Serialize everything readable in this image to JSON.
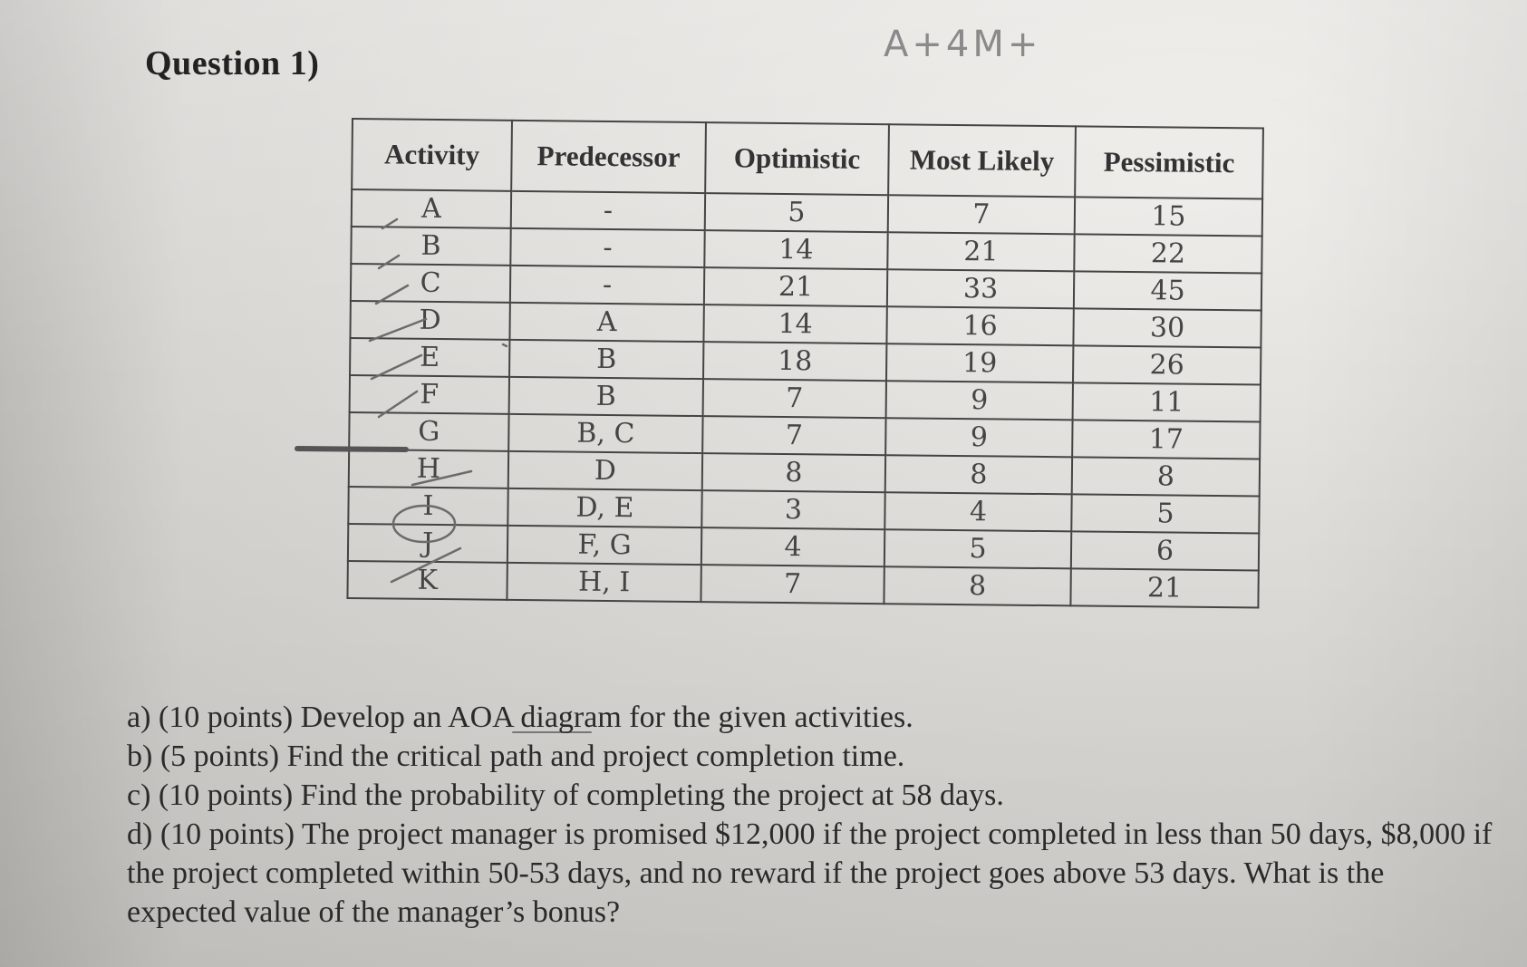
{
  "question": {
    "title": "Question 1)",
    "handwritten_note": "A+4M+"
  },
  "table": {
    "headers": {
      "activity": "Activity",
      "predecessor": "Predecessor",
      "optimistic": "Optimistic",
      "most_likely": "Most Likely",
      "pessimistic": "Pessimistic"
    },
    "rows": [
      {
        "activity": "A",
        "predecessor": "-",
        "optimistic": "5",
        "most_likely": "7",
        "pessimistic": "15"
      },
      {
        "activity": "B",
        "predecessor": "-",
        "optimistic": "14",
        "most_likely": "21",
        "pessimistic": "22"
      },
      {
        "activity": "C",
        "predecessor": "-",
        "optimistic": "21",
        "most_likely": "33",
        "pessimistic": "45"
      },
      {
        "activity": "D",
        "predecessor": "A",
        "optimistic": "14",
        "most_likely": "16",
        "pessimistic": "30"
      },
      {
        "activity": "E",
        "predecessor": "B",
        "optimistic": "18",
        "most_likely": "19",
        "pessimistic": "26"
      },
      {
        "activity": "F",
        "predecessor": "B",
        "optimistic": "7",
        "most_likely": "9",
        "pessimistic": "11"
      },
      {
        "activity": "G",
        "predecessor": "B, C",
        "optimistic": "7",
        "most_likely": "9",
        "pessimistic": "17"
      },
      {
        "activity": "H",
        "predecessor": "D",
        "optimistic": "8",
        "most_likely": "8",
        "pessimistic": "8"
      },
      {
        "activity": "I",
        "predecessor": "D, E",
        "optimistic": "3",
        "most_likely": "4",
        "pessimistic": "5"
      },
      {
        "activity": "J",
        "predecessor": "F, G",
        "optimistic": "4",
        "most_likely": "5",
        "pessimistic": "6"
      },
      {
        "activity": "K",
        "predecessor": "H, I",
        "optimistic": "7",
        "most_likely": "8",
        "pessimistic": "21"
      }
    ]
  },
  "questions": {
    "a_prefix": "a) (10 points) Develop an ",
    "a_underlined": "AOA",
    "a_suffix": " diagram for the given activities.",
    "b": "b) (5 points) Find the critical path and project completion time.",
    "c": "c) (10 points) Find the probability of completing the project at 58 days.",
    "d": "d) (10 points) The project manager is promised $12,000 if the project completed in less than 50 days, $8,000 if the project completed within 50-53 days, and no reward if the project goes above 53 days. What is the expected value of the manager’s bonus?"
  }
}
